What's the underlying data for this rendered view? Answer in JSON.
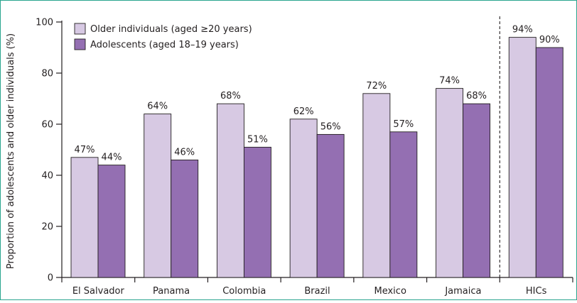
{
  "colors": {
    "older": "#d7c9e3",
    "adolescent": "#946fb2",
    "stroke": "#231f20",
    "frame": "#2aa58f"
  },
  "chart_data": {
    "type": "bar",
    "title": "",
    "xlabel": "",
    "ylabel": "Proportion of adolescents and older individuals (%)",
    "ylim": [
      0,
      100
    ],
    "yticks": [
      0,
      20,
      40,
      60,
      80,
      100
    ],
    "categories": [
      "El Salvador",
      "Panama",
      "Colombia",
      "Brazil",
      "Mexico",
      "Jamaica",
      "HICs"
    ],
    "series": [
      {
        "name": "Older individuals (aged ≥20 years)",
        "values": [
          47,
          64,
          68,
          62,
          72,
          74,
          94
        ],
        "labels": [
          "47%",
          "64%",
          "68%",
          "62%",
          "72%",
          "74%",
          "94%"
        ]
      },
      {
        "name": "Adolescents (aged 18–19 years)",
        "values": [
          44,
          46,
          51,
          56,
          57,
          68,
          90
        ],
        "labels": [
          "44%",
          "46%",
          "51%",
          "56%",
          "57%",
          "68%",
          "90%"
        ]
      }
    ],
    "legend_position": "top-left",
    "grid": false,
    "separator_before": "HICs"
  }
}
